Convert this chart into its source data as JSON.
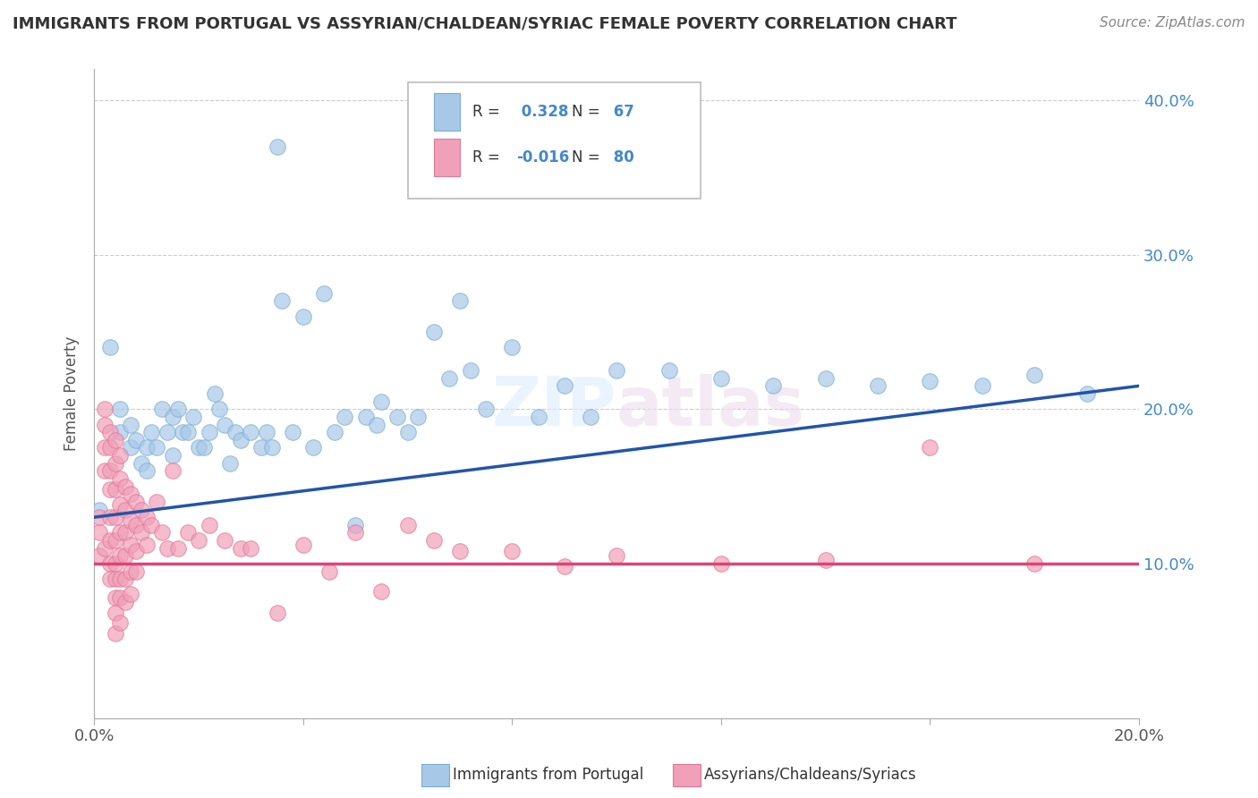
{
  "title": "IMMIGRANTS FROM PORTUGAL VS ASSYRIAN/CHALDEAN/SYRIAC FEMALE POVERTY CORRELATION CHART",
  "source_text": "Source: ZipAtlas.com",
  "ylabel": "Female Poverty",
  "xlim": [
    0.0,
    0.2
  ],
  "ylim": [
    0.0,
    0.42
  ],
  "yticks": [
    0.1,
    0.2,
    0.3,
    0.4
  ],
  "ytick_labels": [
    "10.0%",
    "20.0%",
    "30.0%",
    "40.0%"
  ],
  "xticks": [
    0.0,
    0.04,
    0.08,
    0.12,
    0.16,
    0.2
  ],
  "xtick_labels": [
    "0.0%",
    "",
    "",
    "",
    "",
    "20.0%"
  ],
  "R_blue": 0.328,
  "N_blue": 67,
  "R_pink": -0.016,
  "N_pink": 80,
  "blue_color": "#A8C8E8",
  "pink_color": "#F0A0B8",
  "blue_edge_color": "#7AAED0",
  "pink_edge_color": "#E07898",
  "blue_line_color": "#2255AA",
  "pink_line_color": "#DD4477",
  "watermark": "ZIPatlas",
  "legend_label_blue": "Immigrants from Portugal",
  "legend_label_pink": "Assyrians/Chaldeans/Syriacs",
  "blue_line_y0": 0.13,
  "blue_line_y1": 0.215,
  "pink_line_y0": 0.1,
  "pink_line_y1": 0.1,
  "blue_scatter": [
    [
      0.001,
      0.135
    ],
    [
      0.003,
      0.24
    ],
    [
      0.005,
      0.185
    ],
    [
      0.005,
      0.2
    ],
    [
      0.007,
      0.19
    ],
    [
      0.007,
      0.175
    ],
    [
      0.008,
      0.18
    ],
    [
      0.009,
      0.165
    ],
    [
      0.01,
      0.175
    ],
    [
      0.01,
      0.16
    ],
    [
      0.011,
      0.185
    ],
    [
      0.012,
      0.175
    ],
    [
      0.013,
      0.2
    ],
    [
      0.014,
      0.185
    ],
    [
      0.015,
      0.195
    ],
    [
      0.015,
      0.17
    ],
    [
      0.016,
      0.2
    ],
    [
      0.017,
      0.185
    ],
    [
      0.018,
      0.185
    ],
    [
      0.019,
      0.195
    ],
    [
      0.02,
      0.175
    ],
    [
      0.021,
      0.175
    ],
    [
      0.022,
      0.185
    ],
    [
      0.023,
      0.21
    ],
    [
      0.024,
      0.2
    ],
    [
      0.025,
      0.19
    ],
    [
      0.026,
      0.165
    ],
    [
      0.027,
      0.185
    ],
    [
      0.028,
      0.18
    ],
    [
      0.03,
      0.185
    ],
    [
      0.032,
      0.175
    ],
    [
      0.033,
      0.185
    ],
    [
      0.034,
      0.175
    ],
    [
      0.035,
      0.37
    ],
    [
      0.036,
      0.27
    ],
    [
      0.038,
      0.185
    ],
    [
      0.04,
      0.26
    ],
    [
      0.042,
      0.175
    ],
    [
      0.044,
      0.275
    ],
    [
      0.046,
      0.185
    ],
    [
      0.048,
      0.195
    ],
    [
      0.05,
      0.125
    ],
    [
      0.052,
      0.195
    ],
    [
      0.054,
      0.19
    ],
    [
      0.055,
      0.205
    ],
    [
      0.058,
      0.195
    ],
    [
      0.06,
      0.185
    ],
    [
      0.062,
      0.195
    ],
    [
      0.065,
      0.25
    ],
    [
      0.068,
      0.22
    ],
    [
      0.07,
      0.27
    ],
    [
      0.072,
      0.225
    ],
    [
      0.075,
      0.2
    ],
    [
      0.08,
      0.24
    ],
    [
      0.085,
      0.195
    ],
    [
      0.09,
      0.215
    ],
    [
      0.095,
      0.195
    ],
    [
      0.1,
      0.225
    ],
    [
      0.11,
      0.225
    ],
    [
      0.12,
      0.22
    ],
    [
      0.13,
      0.215
    ],
    [
      0.14,
      0.22
    ],
    [
      0.15,
      0.215
    ],
    [
      0.16,
      0.218
    ],
    [
      0.17,
      0.215
    ],
    [
      0.18,
      0.222
    ],
    [
      0.19,
      0.21
    ]
  ],
  "pink_scatter": [
    [
      0.001,
      0.12
    ],
    [
      0.001,
      0.105
    ],
    [
      0.001,
      0.13
    ],
    [
      0.002,
      0.2
    ],
    [
      0.002,
      0.19
    ],
    [
      0.002,
      0.175
    ],
    [
      0.002,
      0.16
    ],
    [
      0.002,
      0.11
    ],
    [
      0.003,
      0.185
    ],
    [
      0.003,
      0.175
    ],
    [
      0.003,
      0.16
    ],
    [
      0.003,
      0.148
    ],
    [
      0.003,
      0.13
    ],
    [
      0.003,
      0.115
    ],
    [
      0.003,
      0.1
    ],
    [
      0.003,
      0.09
    ],
    [
      0.004,
      0.18
    ],
    [
      0.004,
      0.165
    ],
    [
      0.004,
      0.148
    ],
    [
      0.004,
      0.13
    ],
    [
      0.004,
      0.115
    ],
    [
      0.004,
      0.1
    ],
    [
      0.004,
      0.09
    ],
    [
      0.004,
      0.078
    ],
    [
      0.004,
      0.068
    ],
    [
      0.004,
      0.055
    ],
    [
      0.005,
      0.17
    ],
    [
      0.005,
      0.155
    ],
    [
      0.005,
      0.138
    ],
    [
      0.005,
      0.12
    ],
    [
      0.005,
      0.105
    ],
    [
      0.005,
      0.09
    ],
    [
      0.005,
      0.078
    ],
    [
      0.005,
      0.062
    ],
    [
      0.006,
      0.15
    ],
    [
      0.006,
      0.135
    ],
    [
      0.006,
      0.12
    ],
    [
      0.006,
      0.105
    ],
    [
      0.006,
      0.09
    ],
    [
      0.006,
      0.075
    ],
    [
      0.007,
      0.145
    ],
    [
      0.007,
      0.128
    ],
    [
      0.007,
      0.112
    ],
    [
      0.007,
      0.095
    ],
    [
      0.007,
      0.08
    ],
    [
      0.008,
      0.14
    ],
    [
      0.008,
      0.125
    ],
    [
      0.008,
      0.108
    ],
    [
      0.008,
      0.095
    ],
    [
      0.009,
      0.135
    ],
    [
      0.009,
      0.12
    ],
    [
      0.01,
      0.13
    ],
    [
      0.01,
      0.112
    ],
    [
      0.011,
      0.125
    ],
    [
      0.012,
      0.14
    ],
    [
      0.013,
      0.12
    ],
    [
      0.014,
      0.11
    ],
    [
      0.015,
      0.16
    ],
    [
      0.016,
      0.11
    ],
    [
      0.018,
      0.12
    ],
    [
      0.02,
      0.115
    ],
    [
      0.022,
      0.125
    ],
    [
      0.025,
      0.115
    ],
    [
      0.028,
      0.11
    ],
    [
      0.03,
      0.11
    ],
    [
      0.035,
      0.068
    ],
    [
      0.04,
      0.112
    ],
    [
      0.045,
      0.095
    ],
    [
      0.05,
      0.12
    ],
    [
      0.055,
      0.082
    ],
    [
      0.06,
      0.125
    ],
    [
      0.065,
      0.115
    ],
    [
      0.07,
      0.108
    ],
    [
      0.08,
      0.108
    ],
    [
      0.09,
      0.098
    ],
    [
      0.1,
      0.105
    ],
    [
      0.12,
      0.1
    ],
    [
      0.14,
      0.102
    ],
    [
      0.16,
      0.175
    ],
    [
      0.18,
      0.1
    ]
  ]
}
